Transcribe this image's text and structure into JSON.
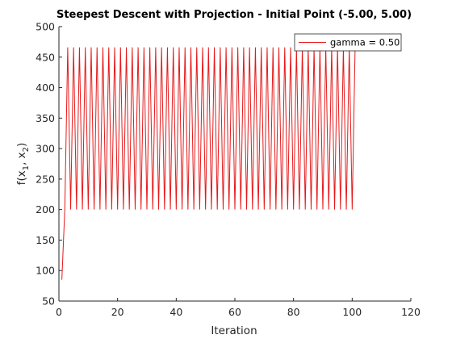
{
  "chart_data": {
    "type": "line",
    "title": "Steepest Descent with Projection - Initial Point (-5.00, 5.00)",
    "xlabel": "Iteration",
    "ylabel_main": "f(x",
    "ylabel_sub1": "1",
    "ylabel_sep": ", x",
    "ylabel_sub2": "2",
    "ylabel_close": ")",
    "xlim": [
      0,
      120
    ],
    "ylim": [
      50,
      500
    ],
    "xticks": [
      0,
      20,
      40,
      60,
      80,
      100,
      120
    ],
    "yticks": [
      50,
      100,
      150,
      200,
      250,
      300,
      350,
      400,
      450,
      500
    ],
    "grid": false,
    "legend_position": "top-right",
    "series": [
      {
        "name": "gamma = 0.50",
        "color": "#e6191a",
        "pattern": {
          "first_point": [
            1,
            85
          ],
          "x_start": 2,
          "x_end": 101,
          "low": 200,
          "high": 466,
          "starts_with": "low"
        }
      }
    ]
  }
}
